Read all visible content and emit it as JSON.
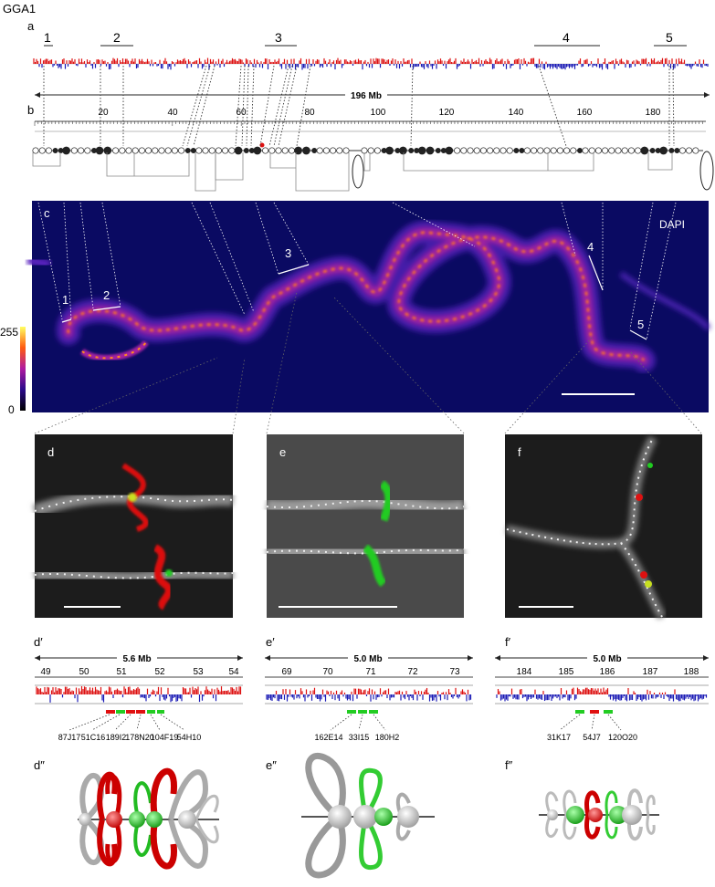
{
  "figure": {
    "title": "GGA1",
    "panel_letters": {
      "a": "a",
      "b": "b",
      "c": "c",
      "d": "d",
      "e": "e",
      "f": "f",
      "d_prime": "d′",
      "e_prime": "e′",
      "f_prime": "f′",
      "d_dprime": "d″",
      "e_dprime": "e″",
      "f_dprime": "f″"
    },
    "region_labels": [
      "1",
      "2",
      "3",
      "4",
      "5"
    ],
    "chromosome_length": "196 Mb",
    "axis_ticks": [
      "20",
      "40",
      "60",
      "80",
      "100",
      "120",
      "140",
      "160",
      "180"
    ],
    "stain_label": "DAPI",
    "colorbar": {
      "max_label": "255",
      "min_label": "0"
    },
    "colors": {
      "track_red": "#dd1111",
      "track_blue": "#1a1ab5",
      "probe_red": "#e01010",
      "probe_green": "#22cc22",
      "loop_gray": "#a8a8a8"
    }
  },
  "zoom_d": {
    "span": "5.6 Mb",
    "ticks": [
      "49",
      "50",
      "51",
      "52",
      "53",
      "54"
    ],
    "probes": [
      "87J17",
      "51C16",
      "189I2",
      "178N20",
      "104F19",
      "54H10"
    ]
  },
  "zoom_e": {
    "span": "5.0 Mb",
    "ticks": [
      "69",
      "70",
      "71",
      "72",
      "73"
    ],
    "probes": [
      "162E14",
      "33I15",
      "180H2"
    ]
  },
  "zoom_f": {
    "span": "5.0 Mb",
    "ticks": [
      "184",
      "185",
      "186",
      "187",
      "188"
    ],
    "probes": [
      "31K17",
      "54J7",
      "120O20"
    ]
  }
}
